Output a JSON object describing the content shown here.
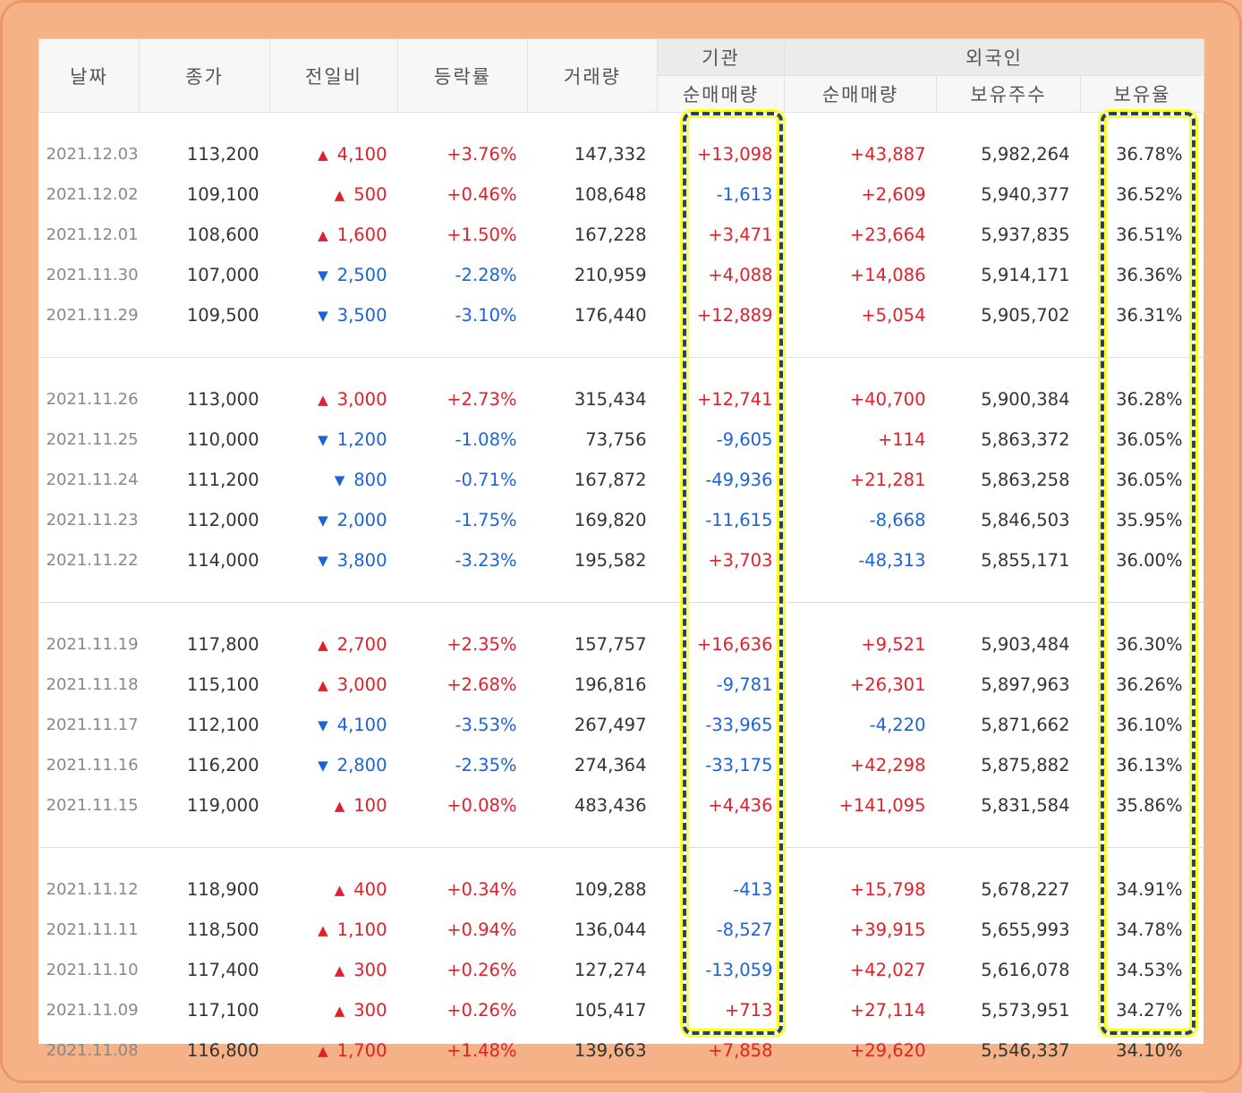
{
  "headers": {
    "date": "날짜",
    "close": "종가",
    "change": "전일비",
    "rate": "등락률",
    "volume": "거래량",
    "institution": "기관",
    "institution_net": "순매매량",
    "foreign": "외국인",
    "foreign_net": "순매매량",
    "foreign_holdings": "보유주수",
    "foreign_ratio": "보유율"
  },
  "colors": {
    "up": "#e0202a",
    "down": "#1d63d8",
    "highlight_border": "#24416c",
    "highlight_glow": "#ffff2a"
  },
  "icons": {
    "up": "▲",
    "down": "▼"
  },
  "groups": [
    [
      {
        "date": "2021.12.03",
        "close": "113,200",
        "dir": "up",
        "change": "4,100",
        "rate": "+3.76%",
        "volume": "147,332",
        "inst": "+13,098",
        "fnet": "+43,887",
        "fhold": "5,982,264",
        "fratio": "36.78%"
      },
      {
        "date": "2021.12.02",
        "close": "109,100",
        "dir": "up",
        "change": "500",
        "rate": "+0.46%",
        "volume": "108,648",
        "inst": "-1,613",
        "fnet": "+2,609",
        "fhold": "5,940,377",
        "fratio": "36.52%"
      },
      {
        "date": "2021.12.01",
        "close": "108,600",
        "dir": "up",
        "change": "1,600",
        "rate": "+1.50%",
        "volume": "167,228",
        "inst": "+3,471",
        "fnet": "+23,664",
        "fhold": "5,937,835",
        "fratio": "36.51%"
      },
      {
        "date": "2021.11.30",
        "close": "107,000",
        "dir": "down",
        "change": "2,500",
        "rate": "-2.28%",
        "volume": "210,959",
        "inst": "+4,088",
        "fnet": "+14,086",
        "fhold": "5,914,171",
        "fratio": "36.36%"
      },
      {
        "date": "2021.11.29",
        "close": "109,500",
        "dir": "down",
        "change": "3,500",
        "rate": "-3.10%",
        "volume": "176,440",
        "inst": "+12,889",
        "fnet": "+5,054",
        "fhold": "5,905,702",
        "fratio": "36.31%"
      }
    ],
    [
      {
        "date": "2021.11.26",
        "close": "113,000",
        "dir": "up",
        "change": "3,000",
        "rate": "+2.73%",
        "volume": "315,434",
        "inst": "+12,741",
        "fnet": "+40,700",
        "fhold": "5,900,384",
        "fratio": "36.28%"
      },
      {
        "date": "2021.11.25",
        "close": "110,000",
        "dir": "down",
        "change": "1,200",
        "rate": "-1.08%",
        "volume": "73,756",
        "inst": "-9,605",
        "fnet": "+114",
        "fhold": "5,863,372",
        "fratio": "36.05%"
      },
      {
        "date": "2021.11.24",
        "close": "111,200",
        "dir": "down",
        "change": "800",
        "rate": "-0.71%",
        "volume": "167,872",
        "inst": "-49,936",
        "fnet": "+21,281",
        "fhold": "5,863,258",
        "fratio": "36.05%"
      },
      {
        "date": "2021.11.23",
        "close": "112,000",
        "dir": "down",
        "change": "2,000",
        "rate": "-1.75%",
        "volume": "169,820",
        "inst": "-11,615",
        "fnet": "-8,668",
        "fhold": "5,846,503",
        "fratio": "35.95%"
      },
      {
        "date": "2021.11.22",
        "close": "114,000",
        "dir": "down",
        "change": "3,800",
        "rate": "-3.23%",
        "volume": "195,582",
        "inst": "+3,703",
        "fnet": "-48,313",
        "fhold": "5,855,171",
        "fratio": "36.00%"
      }
    ],
    [
      {
        "date": "2021.11.19",
        "close": "117,800",
        "dir": "up",
        "change": "2,700",
        "rate": "+2.35%",
        "volume": "157,757",
        "inst": "+16,636",
        "fnet": "+9,521",
        "fhold": "5,903,484",
        "fratio": "36.30%"
      },
      {
        "date": "2021.11.18",
        "close": "115,100",
        "dir": "up",
        "change": "3,000",
        "rate": "+2.68%",
        "volume": "196,816",
        "inst": "-9,781",
        "fnet": "+26,301",
        "fhold": "5,897,963",
        "fratio": "36.26%"
      },
      {
        "date": "2021.11.17",
        "close": "112,100",
        "dir": "down",
        "change": "4,100",
        "rate": "-3.53%",
        "volume": "267,497",
        "inst": "-33,965",
        "fnet": "-4,220",
        "fhold": "5,871,662",
        "fratio": "36.10%"
      },
      {
        "date": "2021.11.16",
        "close": "116,200",
        "dir": "down",
        "change": "2,800",
        "rate": "-2.35%",
        "volume": "274,364",
        "inst": "-33,175",
        "fnet": "+42,298",
        "fhold": "5,875,882",
        "fratio": "36.13%"
      },
      {
        "date": "2021.11.15",
        "close": "119,000",
        "dir": "up",
        "change": "100",
        "rate": "+0.08%",
        "volume": "483,436",
        "inst": "+4,436",
        "fnet": "+141,095",
        "fhold": "5,831,584",
        "fratio": "35.86%"
      }
    ],
    [
      {
        "date": "2021.11.12",
        "close": "118,900",
        "dir": "up",
        "change": "400",
        "rate": "+0.34%",
        "volume": "109,288",
        "inst": "-413",
        "fnet": "+15,798",
        "fhold": "5,678,227",
        "fratio": "34.91%"
      },
      {
        "date": "2021.11.11",
        "close": "118,500",
        "dir": "up",
        "change": "1,100",
        "rate": "+0.94%",
        "volume": "136,044",
        "inst": "-8,527",
        "fnet": "+39,915",
        "fhold": "5,655,993",
        "fratio": "34.78%"
      },
      {
        "date": "2021.11.10",
        "close": "117,400",
        "dir": "up",
        "change": "300",
        "rate": "+0.26%",
        "volume": "127,274",
        "inst": "-13,059",
        "fnet": "+42,027",
        "fhold": "5,616,078",
        "fratio": "34.53%"
      },
      {
        "date": "2021.11.09",
        "close": "117,100",
        "dir": "up",
        "change": "300",
        "rate": "+0.26%",
        "volume": "105,417",
        "inst": "+713",
        "fnet": "+27,114",
        "fhold": "5,573,951",
        "fratio": "34.27%"
      },
      {
        "date": "2021.11.08",
        "close": "116,800",
        "dir": "up",
        "change": "1,700",
        "rate": "+1.48%",
        "volume": "139,663",
        "inst": "+7,858",
        "fnet": "+29,620",
        "fhold": "5,546,337",
        "fratio": "34.10%"
      }
    ]
  ]
}
